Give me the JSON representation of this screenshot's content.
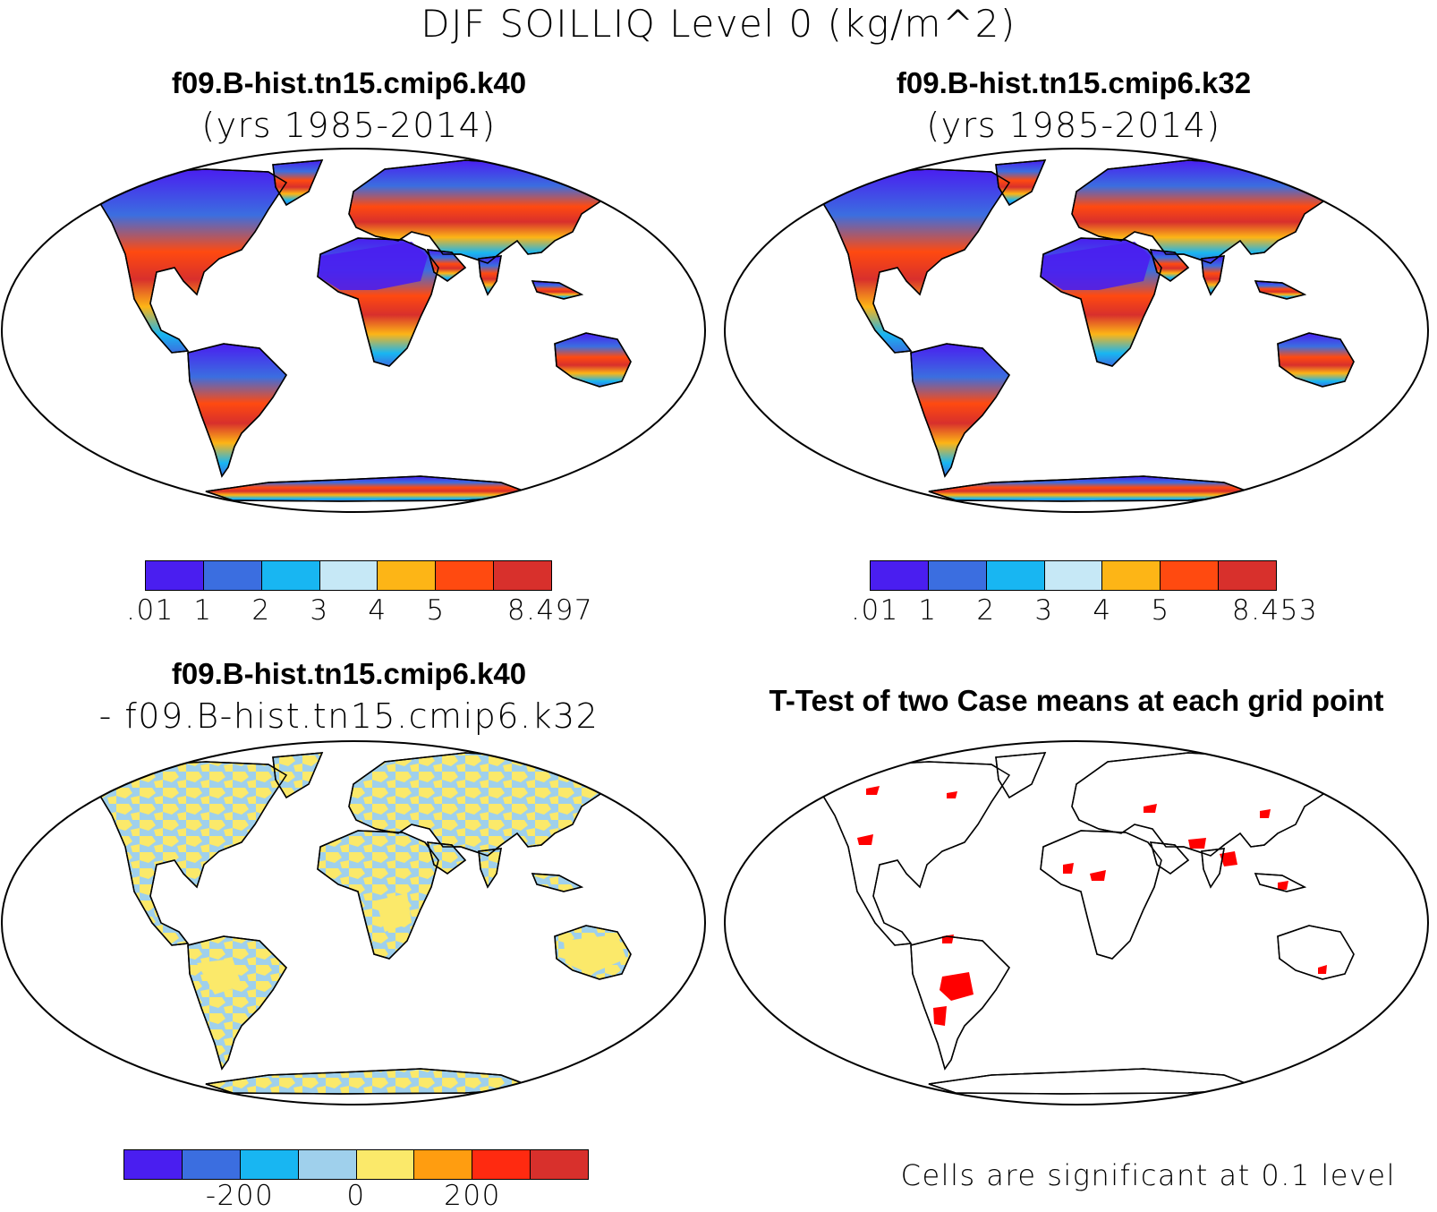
{
  "title": "DJF SOILLIQ Level 0 (kg/m^2)",
  "panels": {
    "top_left": {
      "title": "f09.B-hist.tn15.cmip6.k40",
      "subtitle": "(yrs 1985-2014)",
      "colorbar": {
        "colors": [
          "#4a1ef0",
          "#3b6ee0",
          "#18b6f2",
          "#c6e8f6",
          "#fdb516",
          "#ff4a10",
          "#d8302c"
        ],
        "labels": [
          ".01",
          "1",
          "2",
          "3",
          "4",
          "5",
          "8.497"
        ]
      }
    },
    "top_right": {
      "title": "f09.B-hist.tn15.cmip6.k32",
      "subtitle": "(yrs 1985-2014)",
      "colorbar": {
        "colors": [
          "#4a1ef0",
          "#3b6ee0",
          "#18b6f2",
          "#c6e8f6",
          "#fdb516",
          "#ff4a10",
          "#d8302c"
        ],
        "labels": [
          ".01",
          "1",
          "2",
          "3",
          "4",
          "5",
          "8.453"
        ]
      }
    },
    "bottom_left": {
      "title": "f09.B-hist.tn15.cmip6.k40",
      "subtitle": "- f09.B-hist.tn15.cmip6.k32",
      "colorbar": {
        "colors": [
          "#4a1ef0",
          "#3b6ee0",
          "#18b6f2",
          "#9fd0ec",
          "#fbe96a",
          "#ff9d10",
          "#ff2a10",
          "#d8302c"
        ],
        "labels": [
          "-200",
          "0",
          "200"
        ]
      }
    },
    "bottom_right": {
      "title": "T-Test of two Case means at each grid point",
      "footnote": "Cells are significant at 0.1 level",
      "signif_color": "#ff0000"
    }
  }
}
